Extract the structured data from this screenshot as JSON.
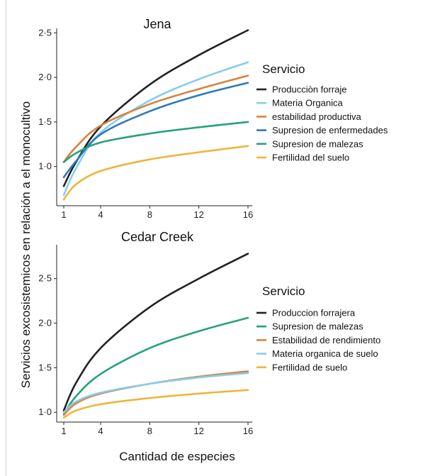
{
  "figure": {
    "ylabel": "Servicios excosistemicos en relación a el monocultivo",
    "xlabel": "Cantidad de especies"
  },
  "chart_data": [
    {
      "type": "line",
      "title": "Jena",
      "xlim": [
        1,
        16
      ],
      "ylim": [
        0.6,
        2.55
      ],
      "x_ticks": [
        1,
        4,
        8,
        12,
        16
      ],
      "y_ticks": [
        1.0,
        1.5,
        2.0,
        2.5
      ],
      "y_tick_labels": [
        "1·0",
        "1·5",
        "2·0",
        "2·5"
      ],
      "x": [
        1,
        2,
        4,
        8,
        12,
        16
      ],
      "legend_title": "Servicio",
      "legend_position": "right",
      "series": [
        {
          "name": "Producciòn forraje",
          "color": "#222222",
          "values": [
            0.78,
            1.05,
            1.45,
            1.92,
            2.25,
            2.53
          ]
        },
        {
          "name": "Materia Organica",
          "color": "#87cdee",
          "values": [
            0.68,
            0.98,
            1.38,
            1.74,
            1.98,
            2.17
          ]
        },
        {
          "name": "estabilidad productiva",
          "color": "#d9823b",
          "values": [
            1.05,
            1.22,
            1.46,
            1.7,
            1.87,
            2.02
          ]
        },
        {
          "name": "Supresion de enfermedades",
          "color": "#2f79b9",
          "values": [
            0.88,
            1.06,
            1.36,
            1.62,
            1.8,
            1.94
          ]
        },
        {
          "name": "Supresion de malezas",
          "color": "#25a27a",
          "values": [
            1.05,
            1.15,
            1.27,
            1.37,
            1.44,
            1.5
          ]
        },
        {
          "name": "Fertilidad del suelo",
          "color": "#f0b43c",
          "values": [
            0.63,
            0.8,
            0.95,
            1.08,
            1.16,
            1.23
          ]
        }
      ]
    },
    {
      "type": "line",
      "title": "Cedar Creek",
      "xlim": [
        1,
        16
      ],
      "ylim": [
        0.93,
        2.88
      ],
      "x_ticks": [
        1,
        4,
        8,
        12,
        16
      ],
      "y_ticks": [
        1.0,
        1.5,
        2.0,
        2.5
      ],
      "y_tick_labels": [
        "1·0",
        "1·5",
        "2·0",
        "2·5"
      ],
      "x": [
        1,
        2,
        4,
        8,
        12,
        16
      ],
      "legend_title": "Servicio",
      "legend_position": "right",
      "series": [
        {
          "name": "Produccion forrajera",
          "color": "#222222",
          "values": [
            1.02,
            1.33,
            1.72,
            2.18,
            2.5,
            2.78
          ]
        },
        {
          "name": "Supresion de malezas",
          "color": "#25a27a",
          "values": [
            0.98,
            1.18,
            1.43,
            1.72,
            1.91,
            2.06
          ]
        },
        {
          "name": "Estabilidad de rendimiento",
          "color": "#d9823b",
          "values": [
            0.97,
            1.1,
            1.21,
            1.32,
            1.4,
            1.46
          ]
        },
        {
          "name": "Materia organica de suelo",
          "color": "#87cdee",
          "values": [
            1.0,
            1.12,
            1.22,
            1.32,
            1.39,
            1.44
          ]
        },
        {
          "name": "Fertilidad de suelo",
          "color": "#f0b43c",
          "values": [
            0.94,
            1.02,
            1.09,
            1.16,
            1.21,
            1.25
          ]
        }
      ]
    }
  ]
}
